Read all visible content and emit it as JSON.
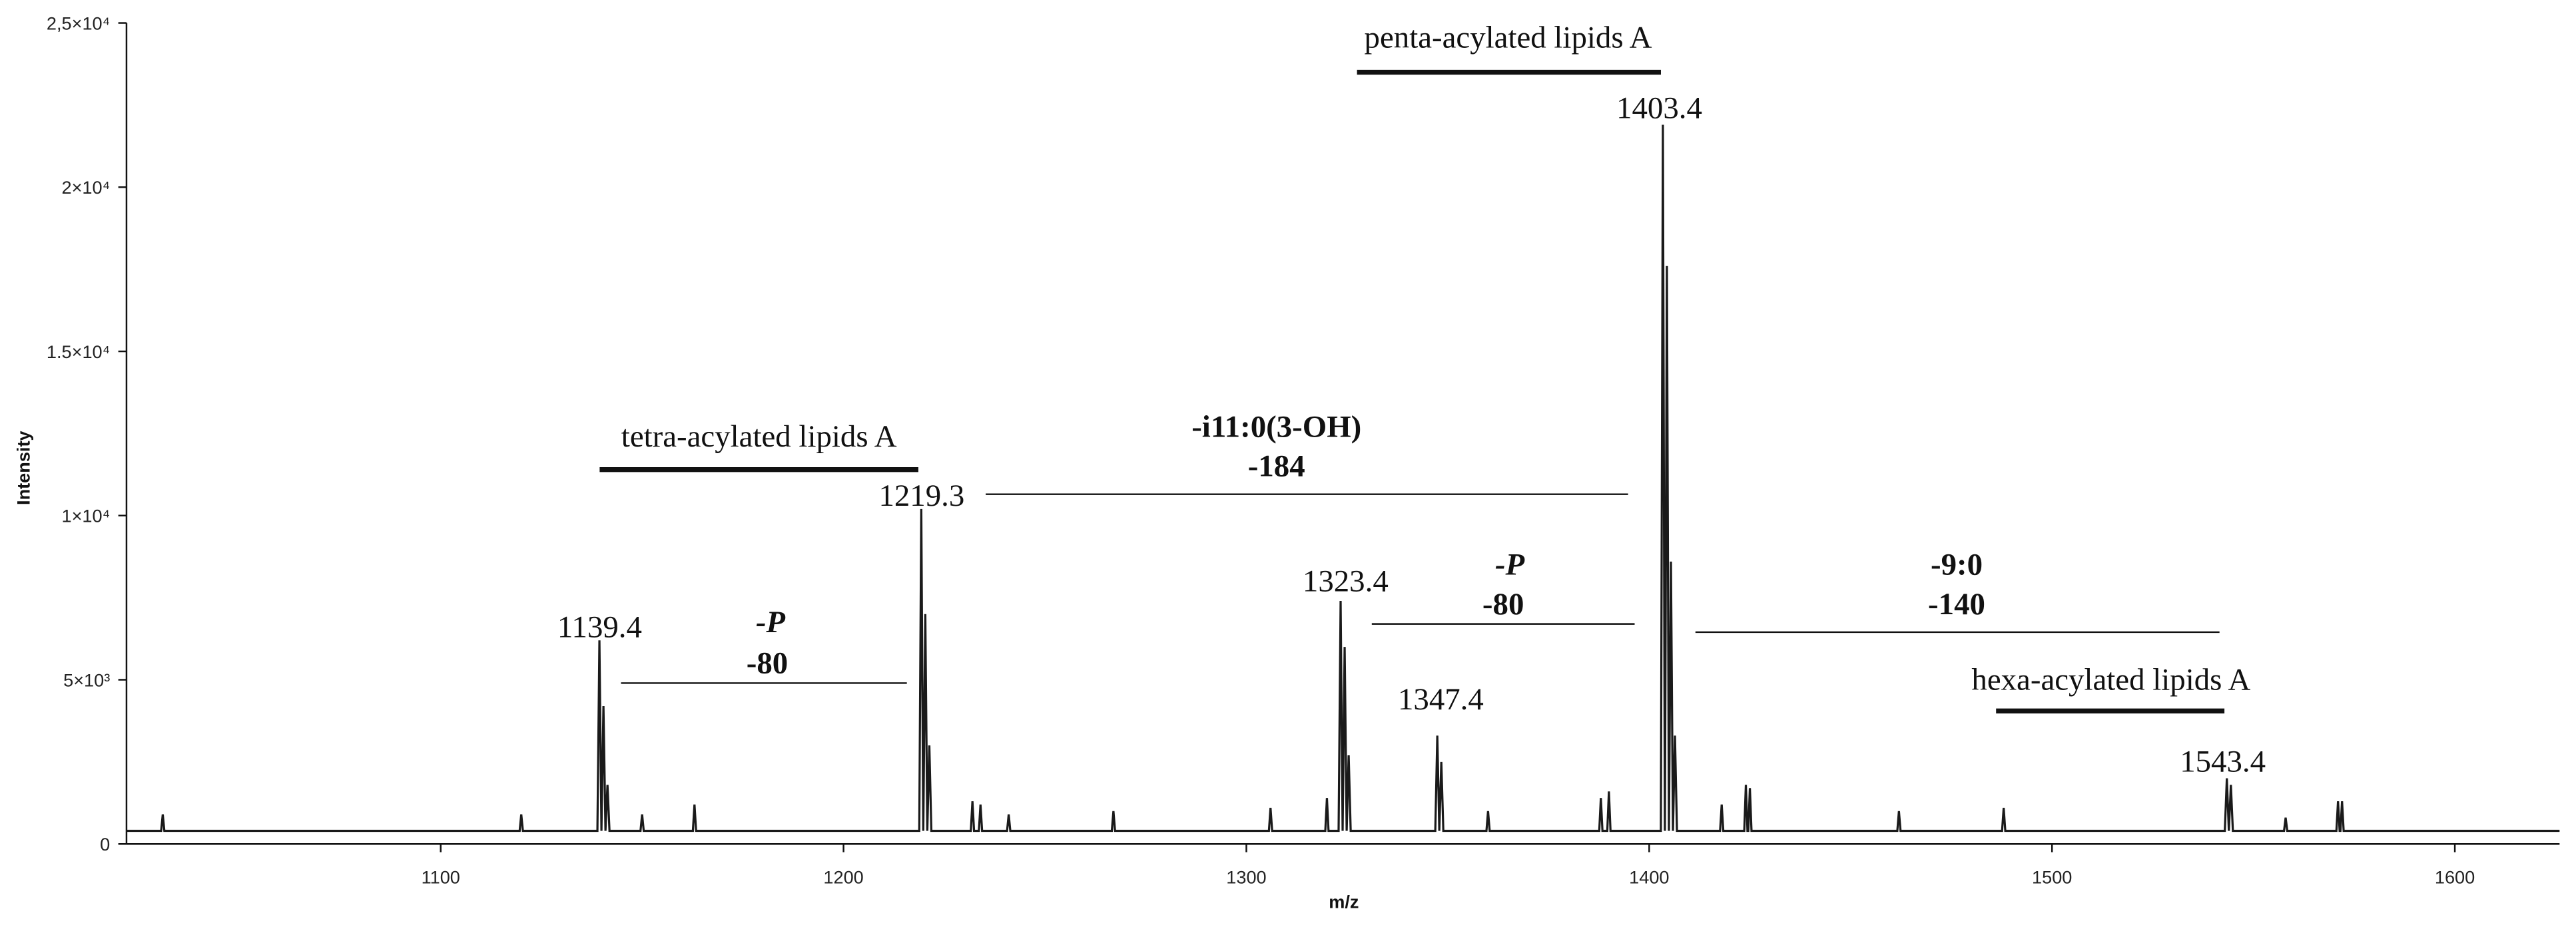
{
  "chart_data": {
    "type": "line",
    "x_label": "m/z",
    "y_label": "Intensity",
    "xlim": [
      1022,
      1626
    ],
    "xticks": [
      1100,
      1200,
      1300,
      1400,
      1500,
      1600
    ],
    "ylim": [
      0,
      25000
    ],
    "yticks": [
      0,
      {
        "value": 5000,
        "label": "5×10³"
      },
      {
        "value": 10000,
        "label": "1×10⁴"
      },
      {
        "value": 15000,
        "label": "1.5×10⁴"
      },
      {
        "value": 20000,
        "label": "2×10⁴"
      },
      {
        "value": 25000,
        "label": "2,5×10⁴"
      }
    ],
    "color": "#1a1a1a",
    "x": [
      1022,
      1030.6,
      1031,
      1031.4,
      1119.6,
      1120,
      1120.4,
      1138.9,
      1139.4,
      1139.9,
      1140.4,
      1140.9,
      1141.4,
      1141.9,
      1149.6,
      1150,
      1150.4,
      1162.6,
      1163,
      1163.4,
      1218.8,
      1219.3,
      1219.8,
      1220.3,
      1220.8,
      1221.3,
      1221.8,
      1231.6,
      1232,
      1232.4,
      1233.6,
      1234,
      1234.4,
      1240.6,
      1241,
      1241.4,
      1266.6,
      1267,
      1267.4,
      1305.6,
      1306,
      1306.4,
      1319.6,
      1320,
      1320.4,
      1322.9,
      1323.4,
      1323.9,
      1324.4,
      1324.9,
      1325.4,
      1325.9,
      1346.9,
      1347.4,
      1347.9,
      1348.4,
      1348.9,
      1359.6,
      1360,
      1360.4,
      1387.6,
      1388,
      1388.4,
      1389.6,
      1390,
      1390.4,
      1402.9,
      1403.4,
      1403.9,
      1404.4,
      1404.9,
      1405.4,
      1405.9,
      1406.4,
      1406.9,
      1417.6,
      1418,
      1418.4,
      1423.6,
      1424,
      1424.4,
      1424.6,
      1425,
      1425.4,
      1461.6,
      1462,
      1462.4,
      1487.6,
      1488,
      1488.4,
      1542.9,
      1543.4,
      1543.9,
      1544.4,
      1544.9,
      1557.6,
      1558,
      1558.4,
      1570.6,
      1571,
      1571.4,
      1571.6,
      1572,
      1572.4,
      1626
    ],
    "values": [
      400,
      400,
      900,
      400,
      400,
      900,
      400,
      400,
      6200,
      400,
      4200,
      400,
      1800,
      400,
      400,
      900,
      400,
      400,
      1200,
      400,
      400,
      10200,
      400,
      7000,
      400,
      3000,
      400,
      400,
      1300,
      400,
      400,
      1200,
      400,
      400,
      900,
      400,
      400,
      1000,
      400,
      400,
      1100,
      400,
      400,
      1400,
      400,
      400,
      7400,
      400,
      6000,
      400,
      2700,
      400,
      400,
      3300,
      400,
      2500,
      400,
      400,
      1000,
      400,
      400,
      1400,
      400,
      400,
      1600,
      400,
      400,
      21900,
      400,
      17600,
      400,
      8600,
      400,
      3300,
      400,
      400,
      1200,
      400,
      400,
      1800,
      400,
      400,
      1700,
      400,
      400,
      1000,
      400,
      400,
      1100,
      400,
      400,
      2000,
      400,
      1800,
      400,
      400,
      800,
      400,
      400,
      1300,
      400,
      400,
      1300,
      400,
      400
    ],
    "annotations": [
      "penta-acylated lipids A",
      "1403.4",
      "tetra-acylated lipids A",
      "1219.3",
      "-i11:0(3-OH)",
      "-184",
      "1139.4",
      "-P",
      "-80",
      "1323.4",
      "-P",
      "-80",
      "1347.4",
      "-9:0",
      "-140",
      "hexa-acylated lipids A",
      "1543.4"
    ]
  }
}
